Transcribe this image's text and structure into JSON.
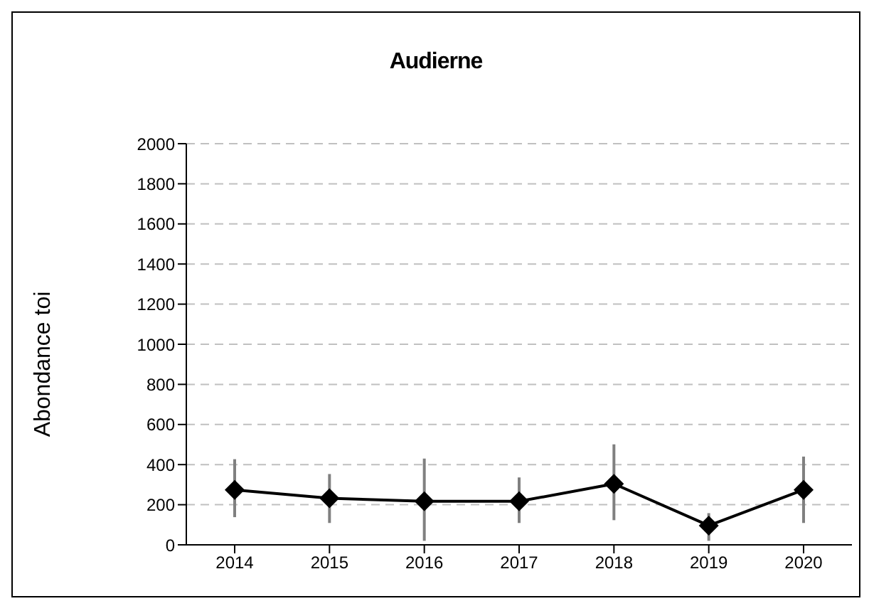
{
  "chart_data": {
    "type": "line",
    "title": "Audierne",
    "ylabel": "Abondance toi",
    "categories": [
      "2014",
      "2015",
      "2016",
      "2017",
      "2018",
      "2019",
      "2020"
    ],
    "series": [
      {
        "color": "#000000",
        "values": [
          274,
          232,
          217,
          217,
          304,
          96,
          274
        ],
        "errors": [
          [
            138,
            427
          ],
          [
            109,
            353
          ],
          [
            20,
            430
          ],
          [
            109,
            336
          ],
          [
            123,
            501
          ],
          [
            20,
            158
          ],
          [
            109,
            440
          ]
        ]
      }
    ],
    "ylim": [
      0,
      2000
    ],
    "yticks": [
      0,
      200,
      400,
      600,
      800,
      1000,
      1200,
      1400,
      1600,
      1800,
      2000
    ],
    "grid": "y",
    "marker": "diamond",
    "line_style": "solid"
  }
}
